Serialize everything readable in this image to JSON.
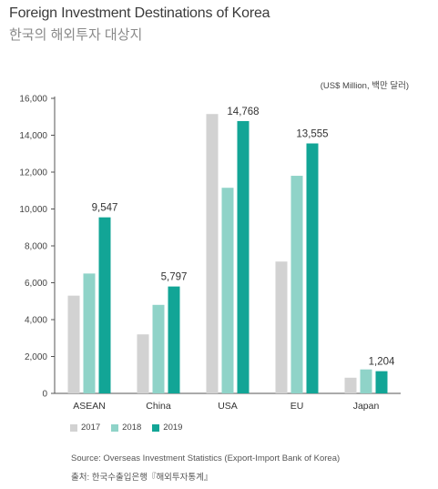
{
  "header": {
    "title": "Foreign Investment Destinations of Korea",
    "subtitle": "한국의 해외투자 대상지"
  },
  "unit_label": "(US$ Million, 백만 달러)",
  "legend": [
    {
      "label": "2017",
      "color": "#d2d2d2"
    },
    {
      "label": "2018",
      "color": "#8fd3c8"
    },
    {
      "label": "2019",
      "color": "#12a596"
    }
  ],
  "source": {
    "en": "Source: Overseas Investment Statistics (Export-Import Bank of Korea)",
    "kr": "출처: 한국수출입은행『해외투자통계』"
  },
  "chart_data": {
    "type": "bar",
    "categories": [
      "ASEAN",
      "China",
      "USA",
      "EU",
      "Japan"
    ],
    "series": [
      {
        "name": "2017",
        "color": "#d2d2d2",
        "values": [
          5300,
          3200,
          15150,
          7150,
          850
        ]
      },
      {
        "name": "2018",
        "color": "#8fd3c8",
        "values": [
          6500,
          4800,
          11150,
          11800,
          1300
        ]
      },
      {
        "name": "2019",
        "color": "#12a596",
        "values": [
          9547,
          5797,
          14768,
          13555,
          1204
        ]
      }
    ],
    "data_labels": [
      "9,547",
      "5,797",
      "14,768",
      "13,555",
      "1,204"
    ],
    "yticks": [
      "0",
      "2,000",
      "4,000",
      "6,000",
      "8,000",
      "10,000",
      "12,000",
      "14,000",
      "16,000"
    ],
    "ylim": [
      0,
      16000
    ],
    "grid": false,
    "legend_position": "bottom-left"
  }
}
